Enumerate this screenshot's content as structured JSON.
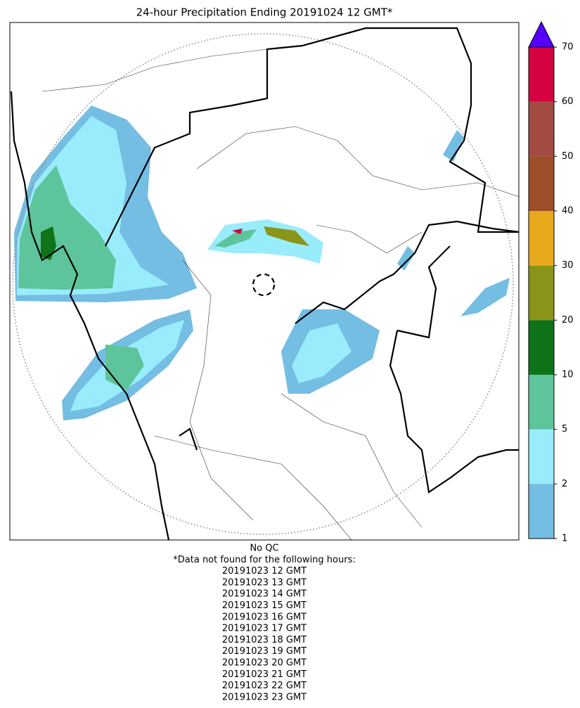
{
  "title": "24-hour Precipitation Ending 20191024 12 GMT*",
  "colorbar": {
    "bounds": [
      1,
      2,
      5,
      10,
      20,
      30,
      40,
      50,
      60,
      70
    ],
    "colors": [
      "#74bde3",
      "#99ecfc",
      "#5ec49b",
      "#0f731a",
      "#8a9418",
      "#e6aa1c",
      "#9c4f28",
      "#a34a42",
      "#d4003f"
    ],
    "extend_color": "#5500ff"
  },
  "notes": [
    "No QC",
    "*Data not found for the following hours:",
    "20191023 12 GMT",
    "20191023 13 GMT",
    "20191023 14 GMT",
    "20191023 15 GMT",
    "20191023 16 GMT",
    "20191023 17 GMT",
    "20191023 18 GMT",
    "20191023 19 GMT",
    "20191023 20 GMT",
    "20191023 21 GMT",
    "20191023 22 GMT",
    "20191023 23 GMT"
  ]
}
